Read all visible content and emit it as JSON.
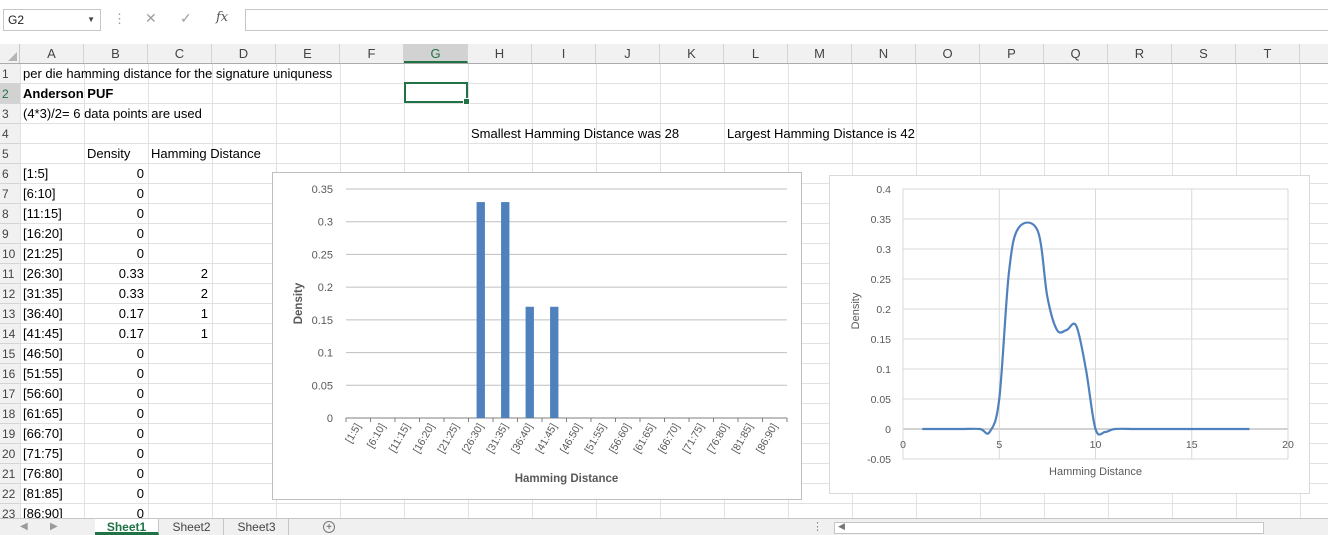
{
  "formula_bar": {
    "name_box": "G2",
    "cancel_icon": "✕",
    "enter_icon": "✓",
    "fx_label": "fx",
    "formula_value": ""
  },
  "columns": [
    "A",
    "B",
    "C",
    "D",
    "E",
    "F",
    "G",
    "H",
    "I",
    "J",
    "K",
    "L",
    "M",
    "N",
    "O",
    "P",
    "Q",
    "R",
    "S",
    "T"
  ],
  "selected_column": "G",
  "selected_row": "2",
  "rows": [
    "1",
    "2",
    "3",
    "4",
    "5",
    "6",
    "7",
    "8",
    "9",
    "10",
    "11",
    "12",
    "13",
    "14",
    "15",
    "16",
    "17",
    "18",
    "19",
    "20",
    "21",
    "22",
    "23"
  ],
  "cells": {
    "A1": "per die hamming distance for the signature uniquness",
    "A2": "Anderson PUF",
    "A3": "(4*3)/2= 6 data points are used",
    "H4": "Smallest Hamming Distance was 28",
    "L4": "Largest Hamming Distance is 42",
    "B5": "Density",
    "C5": "Hamming Distance"
  },
  "table": [
    {
      "range": "[1:5]",
      "density": "0",
      "count": ""
    },
    {
      "range": "[6:10]",
      "density": "0",
      "count": ""
    },
    {
      "range": "[11:15]",
      "density": "0",
      "count": ""
    },
    {
      "range": "[16:20]",
      "density": "0",
      "count": ""
    },
    {
      "range": "[21:25]",
      "density": "0",
      "count": ""
    },
    {
      "range": "[26:30]",
      "density": "0.33",
      "count": "2"
    },
    {
      "range": "[31:35]",
      "density": "0.33",
      "count": "2"
    },
    {
      "range": "[36:40]",
      "density": "0.17",
      "count": "1"
    },
    {
      "range": "[41:45]",
      "density": "0.17",
      "count": "1"
    },
    {
      "range": "[46:50]",
      "density": "0",
      "count": ""
    },
    {
      "range": "[51:55]",
      "density": "0",
      "count": ""
    },
    {
      "range": "[56:60]",
      "density": "0",
      "count": ""
    },
    {
      "range": "[61:65]",
      "density": "0",
      "count": ""
    },
    {
      "range": "[66:70]",
      "density": "0",
      "count": ""
    },
    {
      "range": "[71:75]",
      "density": "0",
      "count": ""
    },
    {
      "range": "[76:80]",
      "density": "0",
      "count": ""
    },
    {
      "range": "[81:85]",
      "density": "0",
      "count": ""
    },
    {
      "range": "[86:90]",
      "density": "0",
      "count": ""
    }
  ],
  "sheets": [
    "Sheet1",
    "Sheet2",
    "Sheet3"
  ],
  "active_sheet": "Sheet1",
  "colors": {
    "accent": "#217346",
    "bar": "#4f81bd",
    "line": "#4f81bd"
  },
  "chart_data": [
    {
      "type": "bar",
      "title": "",
      "xlabel": "Hamming Distance",
      "ylabel": "Density",
      "categories": [
        "[1:5]",
        "[6:10]",
        "[11:15]",
        "[16:20]",
        "[21:25]",
        "[26:30]",
        "[31:35]",
        "[36:40]",
        "[41:45]",
        "[46:50]",
        "[51:55]",
        "[56:60]",
        "[61:65]",
        "[66:70]",
        "[71:75]",
        "[76:80]",
        "[81:85]",
        "[86:90]"
      ],
      "values": [
        0,
        0,
        0,
        0,
        0,
        0.33,
        0.33,
        0.17,
        0.17,
        0,
        0,
        0,
        0,
        0,
        0,
        0,
        0,
        0
      ],
      "ylim": [
        0,
        0.35
      ],
      "yticks": [
        "0",
        "0.05",
        "0.1",
        "0.15",
        "0.2",
        "0.25",
        "0.3",
        "0.35"
      ],
      "grid": true
    },
    {
      "type": "line",
      "title": "",
      "xlabel": "Hamming Distance",
      "ylabel": "Density",
      "x": [
        1,
        2,
        3,
        4,
        4.5,
        5,
        5.5,
        6,
        7,
        7.5,
        8,
        8.5,
        9,
        9.5,
        10,
        10.5,
        11,
        12,
        13,
        14,
        15,
        16,
        17,
        18
      ],
      "y": [
        0,
        0,
        0,
        0,
        -0.005,
        0.05,
        0.26,
        0.335,
        0.33,
        0.22,
        0.165,
        0.165,
        0.172,
        0.1,
        0,
        -0.005,
        0,
        0,
        0,
        0,
        0,
        0,
        0,
        0
      ],
      "xlim": [
        0,
        20
      ],
      "ylim": [
        -0.05,
        0.4
      ],
      "xticks": [
        "0",
        "5",
        "10",
        "15",
        "20"
      ],
      "yticks": [
        "-0.05",
        "0",
        "0.05",
        "0.1",
        "0.15",
        "0.2",
        "0.25",
        "0.3",
        "0.35",
        "0.4"
      ],
      "grid": true
    }
  ]
}
